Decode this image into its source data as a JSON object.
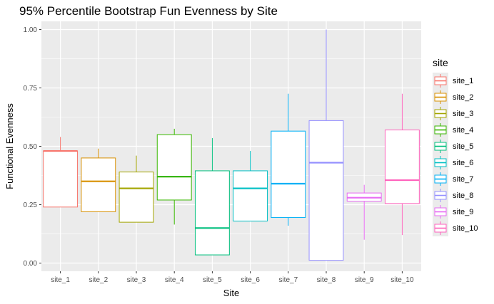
{
  "chart_data": {
    "type": "box",
    "title": "95% Percentile Bootstrap Fun Evenness by Site",
    "xlabel": "Site",
    "ylabel": "Functional Evenness",
    "ylim": [
      -0.035,
      1.035
    ],
    "yticks": [
      0,
      0.25,
      0.5,
      0.75,
      1.0
    ],
    "ytick_labels": [
      "0.00",
      "0.25",
      "0.50",
      "0.75",
      "1.00"
    ],
    "grid": true,
    "legend": {
      "title": "site",
      "placement": "right"
    },
    "categories": [
      "site_1",
      "site_2",
      "site_3",
      "site_4",
      "site_5",
      "site_6",
      "site_7",
      "site_8",
      "site_9",
      "site_10"
    ],
    "series": [
      {
        "name": "site_1",
        "color": "#F8766D",
        "whisker_low": 0.24,
        "q1": 0.24,
        "median": 0.48,
        "q3": 0.48,
        "whisker_high": 0.54
      },
      {
        "name": "site_2",
        "color": "#D89000",
        "whisker_low": 0.22,
        "q1": 0.22,
        "median": 0.35,
        "q3": 0.45,
        "whisker_high": 0.49
      },
      {
        "name": "site_3",
        "color": "#A3A500",
        "whisker_low": 0.175,
        "q1": 0.175,
        "median": 0.32,
        "q3": 0.39,
        "whisker_high": 0.46
      },
      {
        "name": "site_4",
        "color": "#39B600",
        "whisker_low": 0.165,
        "q1": 0.27,
        "median": 0.37,
        "q3": 0.55,
        "whisker_high": 0.575
      },
      {
        "name": "site_5",
        "color": "#00BF7D",
        "whisker_low": 0.035,
        "q1": 0.035,
        "median": 0.15,
        "q3": 0.395,
        "whisker_high": 0.535
      },
      {
        "name": "site_6",
        "color": "#00BFC4",
        "whisker_low": 0.18,
        "q1": 0.18,
        "median": 0.32,
        "q3": 0.395,
        "whisker_high": 0.48
      },
      {
        "name": "site_7",
        "color": "#00B0F6",
        "whisker_low": 0.16,
        "q1": 0.195,
        "median": 0.34,
        "q3": 0.565,
        "whisker_high": 0.725
      },
      {
        "name": "site_8",
        "color": "#9590FF",
        "whisker_low": 0.012,
        "q1": 0.012,
        "median": 0.43,
        "q3": 0.61,
        "whisker_high": 1.0
      },
      {
        "name": "site_9",
        "color": "#E76BF3",
        "whisker_low": 0.1,
        "q1": 0.265,
        "median": 0.28,
        "q3": 0.3,
        "whisker_high": 0.335
      },
      {
        "name": "site_10",
        "color": "#FF62BC",
        "whisker_low": 0.12,
        "q1": 0.255,
        "median": 0.355,
        "q3": 0.57,
        "whisker_high": 0.725
      }
    ]
  }
}
